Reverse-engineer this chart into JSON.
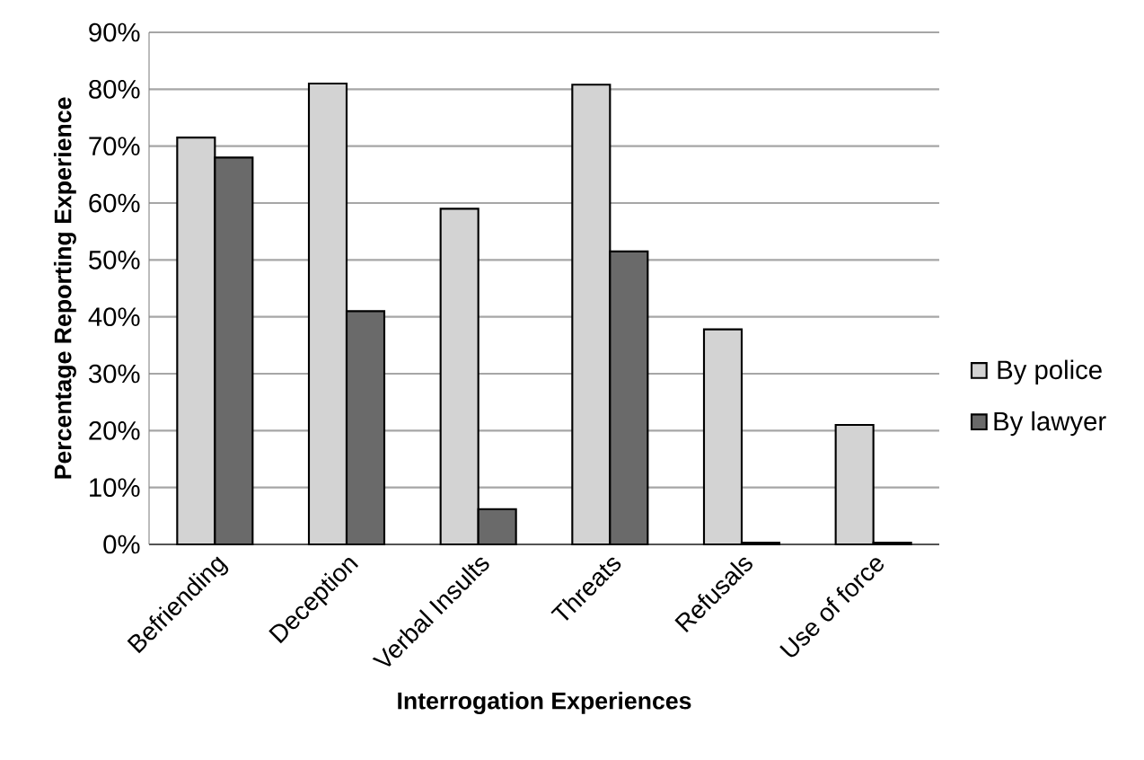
{
  "chart_data": {
    "type": "bar",
    "xlabel": "Interrogation Experiences",
    "ylabel": "Percentage Reporting Experience",
    "categories": [
      "Befriending",
      "Deception",
      "Verbal Insults",
      "Threats",
      "Refusals",
      "Use of force"
    ],
    "series": [
      {
        "name": "By police",
        "color": "#d3d3d3",
        "values": [
          71.5,
          81,
          59,
          80.8,
          37.8,
          21
        ]
      },
      {
        "name": "By lawyer",
        "color": "#6a6a6a",
        "values": [
          68,
          41,
          6.2,
          51.5,
          0.3,
          0.3
        ]
      }
    ],
    "ylim": [
      0,
      90
    ],
    "yticks": [
      {
        "value": 0,
        "label": "0%"
      },
      {
        "value": 10,
        "label": "10%"
      },
      {
        "value": 20,
        "label": "20%"
      },
      {
        "value": 30,
        "label": "30%"
      },
      {
        "value": 40,
        "label": "40%"
      },
      {
        "value": 50,
        "label": "50%"
      },
      {
        "value": 60,
        "label": "60%"
      },
      {
        "value": 70,
        "label": "70%"
      },
      {
        "value": 80,
        "label": "80%"
      },
      {
        "value": 90,
        "label": "90%"
      }
    ],
    "grid": "y",
    "legend": "right"
  }
}
